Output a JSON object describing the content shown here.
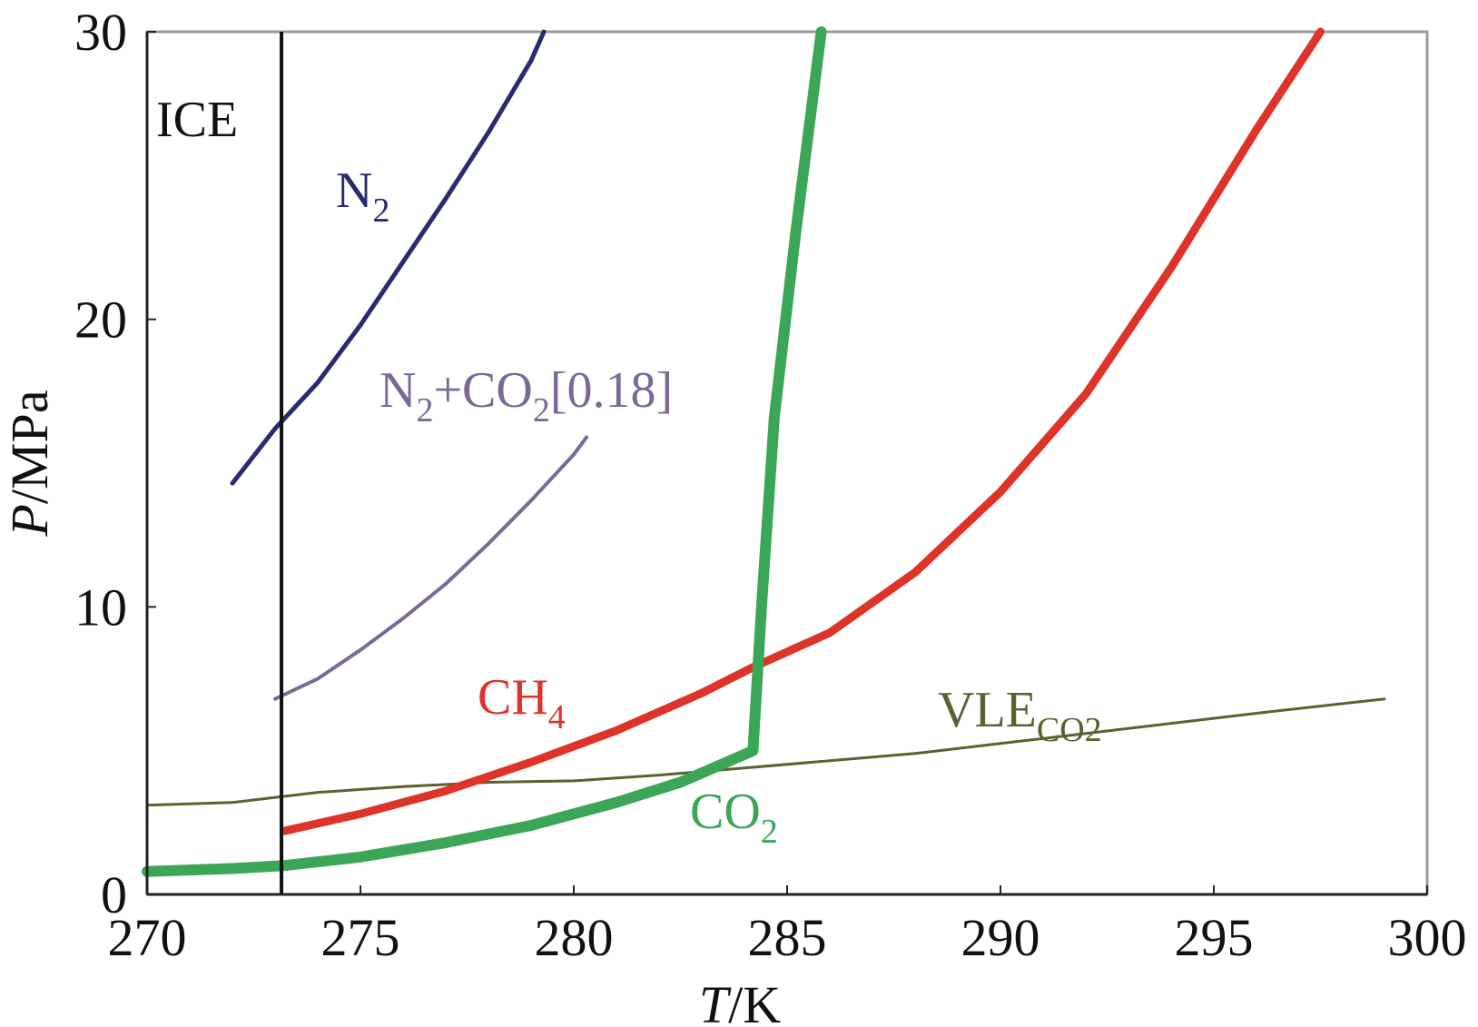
{
  "chart_data": {
    "type": "line",
    "xlabel": {
      "var": "T",
      "unit": "/K"
    },
    "ylabel": {
      "var": "P",
      "unit": "/MPa"
    },
    "xlim": [
      270,
      300
    ],
    "ylim": [
      0,
      30
    ],
    "xticks": [
      "270",
      "275",
      "280",
      "285",
      "290",
      "295",
      "300"
    ],
    "yticks": [
      "0",
      "10",
      "20",
      "30"
    ],
    "grid": false,
    "legend": "none",
    "ice_line": {
      "label": "ICE",
      "T": 273.15,
      "color": "#111111"
    },
    "series": [
      {
        "name": "N2",
        "label_main": "N",
        "label_sub": "2",
        "label_rest": "",
        "color": "#2a2a6e",
        "width": 5,
        "x": [
          272,
          273,
          274,
          275,
          276,
          277,
          278,
          279,
          279.3
        ],
        "y": [
          14.3,
          16.2,
          17.8,
          19.8,
          22.0,
          24.2,
          26.5,
          29.0,
          30
        ]
      },
      {
        "name": "N2+CO2[0.18]",
        "label_main": "N",
        "label_sub": "2",
        "label_rest": "+CO",
        "label_sub2": "2",
        "label_tail": "[0.18]",
        "color": "#7a6896",
        "width": 4,
        "x": [
          273,
          274,
          275,
          276,
          277,
          278,
          279,
          280,
          280.3
        ],
        "y": [
          6.8,
          7.5,
          8.5,
          9.6,
          10.8,
          12.2,
          13.7,
          15.3,
          15.9
        ]
      },
      {
        "name": "CH4",
        "label_main": "CH",
        "label_sub": "4",
        "label_rest": "",
        "color": "#de3329",
        "width": 9,
        "x": [
          273.2,
          275,
          277,
          279,
          281,
          283,
          284.2,
          286,
          288,
          290,
          292,
          294,
          296,
          297.5
        ],
        "y": [
          2.2,
          2.8,
          3.6,
          4.6,
          5.7,
          7.0,
          7.9,
          9.1,
          11.2,
          14.0,
          17.4,
          21.8,
          26.6,
          30
        ]
      },
      {
        "name": "CO2",
        "label_main": "CO",
        "label_sub": "2",
        "label_rest": "",
        "color": "#3aa656",
        "width": 12,
        "x": [
          270,
          272,
          273.2,
          275,
          277,
          279,
          281,
          282.5,
          284.2,
          284.4,
          284.7,
          285.2,
          285.8
        ],
        "y": [
          0.8,
          0.9,
          1.0,
          1.3,
          1.8,
          2.4,
          3.2,
          3.9,
          5.0,
          10.0,
          16.6,
          23.0,
          30
        ]
      },
      {
        "name": "VLE_CO2",
        "label_main": "VLE",
        "label_sub": "CO2",
        "label_rest": "",
        "color": "#5e5f2e",
        "width": 3,
        "x": [
          270,
          272,
          274,
          276,
          278,
          280,
          282,
          284,
          286,
          288,
          290,
          292,
          294,
          296,
          299
        ],
        "y": [
          3.1,
          3.2,
          3.55,
          3.75,
          3.9,
          3.95,
          4.15,
          4.4,
          4.65,
          4.9,
          5.25,
          5.6,
          5.95,
          6.3,
          6.8
        ]
      }
    ]
  }
}
